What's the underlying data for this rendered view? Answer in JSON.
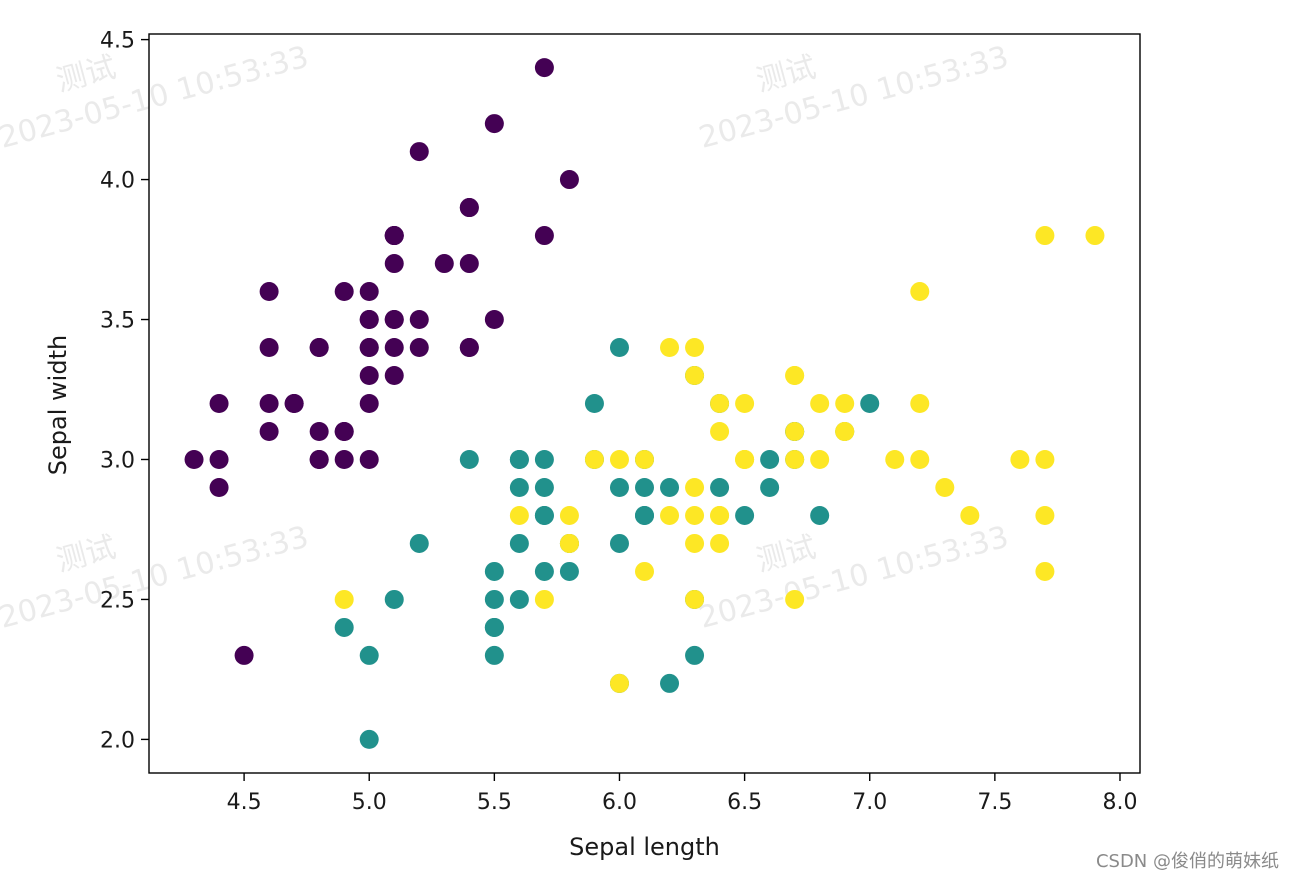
{
  "watermark": {
    "line1": "测试",
    "line2": "2023-05-10 10:53:33"
  },
  "credit": "CSDN @俊俏的萌妹纸",
  "chart_data": {
    "type": "scatter",
    "title": "",
    "xlabel": "Sepal length",
    "ylabel": "Sepal width",
    "xlim": [
      4.12,
      8.08
    ],
    "ylim": [
      1.88,
      4.52
    ],
    "xticks": [
      "4.5",
      "5.0",
      "5.5",
      "6.0",
      "6.5",
      "7.0",
      "7.5",
      "8.0"
    ],
    "yticks": [
      "2.0",
      "2.5",
      "3.0",
      "3.5",
      "4.0",
      "4.5"
    ],
    "grid": false,
    "colormap": "viridis",
    "class_colors": [
      "#440154",
      "#21918c",
      "#fde725"
    ],
    "series": [
      {
        "points": [
          [
            5.1,
            3.5
          ],
          [
            4.9,
            3.0
          ],
          [
            4.7,
            3.2
          ],
          [
            4.6,
            3.1
          ],
          [
            5.0,
            3.6
          ],
          [
            5.4,
            3.9
          ],
          [
            4.6,
            3.4
          ],
          [
            5.0,
            3.4
          ],
          [
            4.4,
            2.9
          ],
          [
            4.9,
            3.1
          ],
          [
            5.4,
            3.7
          ],
          [
            4.8,
            3.4
          ],
          [
            4.8,
            3.0
          ],
          [
            4.3,
            3.0
          ],
          [
            5.8,
            4.0
          ],
          [
            5.7,
            4.4
          ],
          [
            5.4,
            3.9
          ],
          [
            5.1,
            3.5
          ],
          [
            5.7,
            3.8
          ],
          [
            5.1,
            3.8
          ],
          [
            5.4,
            3.4
          ],
          [
            5.1,
            3.7
          ],
          [
            4.6,
            3.6
          ],
          [
            5.1,
            3.3
          ],
          [
            4.8,
            3.4
          ],
          [
            5.0,
            3.0
          ],
          [
            5.0,
            3.4
          ],
          [
            5.2,
            3.5
          ],
          [
            5.2,
            3.4
          ],
          [
            4.7,
            3.2
          ],
          [
            4.8,
            3.1
          ],
          [
            5.4,
            3.4
          ],
          [
            5.2,
            4.1
          ],
          [
            5.5,
            4.2
          ],
          [
            4.9,
            3.1
          ],
          [
            5.0,
            3.2
          ],
          [
            5.5,
            3.5
          ],
          [
            4.9,
            3.6
          ],
          [
            4.4,
            3.0
          ],
          [
            5.1,
            3.4
          ],
          [
            5.0,
            3.5
          ],
          [
            4.5,
            2.3
          ],
          [
            4.4,
            3.2
          ],
          [
            5.0,
            3.5
          ],
          [
            5.1,
            3.8
          ],
          [
            4.8,
            3.0
          ],
          [
            5.1,
            3.8
          ],
          [
            4.6,
            3.2
          ],
          [
            5.3,
            3.7
          ],
          [
            5.0,
            3.3
          ]
        ]
      },
      {
        "points": [
          [
            7.0,
            3.2
          ],
          [
            6.4,
            3.2
          ],
          [
            6.9,
            3.1
          ],
          [
            5.5,
            2.3
          ],
          [
            6.5,
            2.8
          ],
          [
            5.7,
            2.8
          ],
          [
            6.3,
            3.3
          ],
          [
            4.9,
            2.4
          ],
          [
            6.6,
            2.9
          ],
          [
            5.2,
            2.7
          ],
          [
            5.0,
            2.0
          ],
          [
            5.9,
            3.0
          ],
          [
            6.0,
            2.2
          ],
          [
            6.1,
            2.9
          ],
          [
            5.6,
            2.9
          ],
          [
            6.7,
            3.1
          ],
          [
            5.6,
            3.0
          ],
          [
            5.8,
            2.7
          ],
          [
            6.2,
            2.2
          ],
          [
            5.6,
            2.5
          ],
          [
            5.9,
            3.2
          ],
          [
            6.1,
            2.8
          ],
          [
            6.3,
            2.5
          ],
          [
            6.1,
            2.8
          ],
          [
            6.4,
            2.9
          ],
          [
            6.6,
            3.0
          ],
          [
            6.8,
            2.8
          ],
          [
            6.7,
            3.0
          ],
          [
            6.0,
            2.9
          ],
          [
            5.7,
            2.6
          ],
          [
            5.5,
            2.4
          ],
          [
            5.5,
            2.4
          ],
          [
            5.8,
            2.7
          ],
          [
            6.0,
            2.7
          ],
          [
            5.4,
            3.0
          ],
          [
            6.0,
            3.4
          ],
          [
            6.7,
            3.1
          ],
          [
            6.3,
            2.3
          ],
          [
            5.6,
            3.0
          ],
          [
            5.5,
            2.5
          ],
          [
            5.5,
            2.6
          ],
          [
            6.1,
            3.0
          ],
          [
            5.8,
            2.6
          ],
          [
            5.0,
            2.3
          ],
          [
            5.6,
            2.7
          ],
          [
            5.7,
            3.0
          ],
          [
            5.7,
            2.9
          ],
          [
            6.2,
            2.9
          ],
          [
            5.1,
            2.5
          ],
          [
            5.7,
            2.8
          ]
        ]
      },
      {
        "points": [
          [
            6.3,
            3.3
          ],
          [
            5.8,
            2.7
          ],
          [
            7.1,
            3.0
          ],
          [
            6.3,
            2.9
          ],
          [
            6.5,
            3.0
          ],
          [
            7.6,
            3.0
          ],
          [
            4.9,
            2.5
          ],
          [
            7.3,
            2.9
          ],
          [
            6.7,
            2.5
          ],
          [
            7.2,
            3.6
          ],
          [
            6.5,
            3.2
          ],
          [
            6.4,
            2.7
          ],
          [
            6.8,
            3.0
          ],
          [
            5.7,
            2.5
          ],
          [
            5.8,
            2.8
          ],
          [
            6.4,
            3.2
          ],
          [
            6.5,
            3.0
          ],
          [
            7.7,
            3.8
          ],
          [
            7.7,
            2.6
          ],
          [
            6.0,
            2.2
          ],
          [
            6.9,
            3.2
          ],
          [
            5.6,
            2.8
          ],
          [
            7.7,
            2.8
          ],
          [
            6.3,
            2.7
          ],
          [
            6.7,
            3.3
          ],
          [
            7.2,
            3.2
          ],
          [
            6.2,
            2.8
          ],
          [
            6.1,
            3.0
          ],
          [
            6.4,
            2.8
          ],
          [
            7.2,
            3.0
          ],
          [
            7.4,
            2.8
          ],
          [
            7.9,
            3.8
          ],
          [
            6.4,
            2.8
          ],
          [
            6.3,
            2.8
          ],
          [
            6.1,
            2.6
          ],
          [
            7.7,
            3.0
          ],
          [
            6.3,
            3.4
          ],
          [
            6.4,
            3.1
          ],
          [
            6.0,
            3.0
          ],
          [
            6.9,
            3.1
          ],
          [
            6.7,
            3.1
          ],
          [
            6.9,
            3.1
          ],
          [
            5.8,
            2.7
          ],
          [
            6.8,
            3.2
          ],
          [
            6.7,
            3.3
          ],
          [
            6.7,
            3.0
          ],
          [
            6.3,
            2.5
          ],
          [
            6.5,
            3.0
          ],
          [
            6.2,
            3.4
          ],
          [
            5.9,
            3.0
          ]
        ]
      }
    ]
  }
}
